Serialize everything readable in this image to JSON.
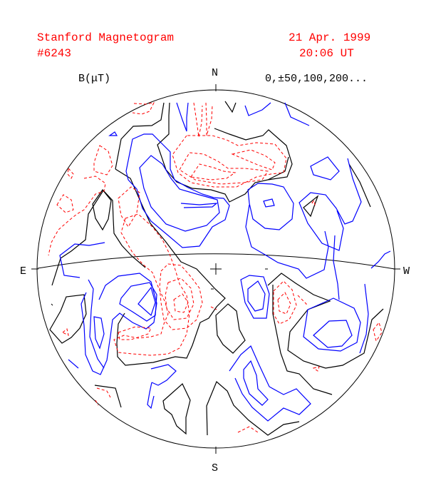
{
  "header": {
    "title": "Stanford Magnetogram",
    "id": "#6243",
    "date": "21 Apr. 1999",
    "time": "20:06 UT"
  },
  "legend": {
    "unit": "B(μT)",
    "levels": "0,±50,100,200..."
  },
  "compass": {
    "north": "N",
    "south": "S",
    "east": "E",
    "west": "W"
  },
  "colors": {
    "text": "#ff0000",
    "positive_contour": "#ff0000",
    "negative_contour": "#0000ff",
    "neutral_line": "#000000"
  },
  "line_styles": {
    "positive": "dashed",
    "negative": "solid",
    "neutral": "solid"
  }
}
